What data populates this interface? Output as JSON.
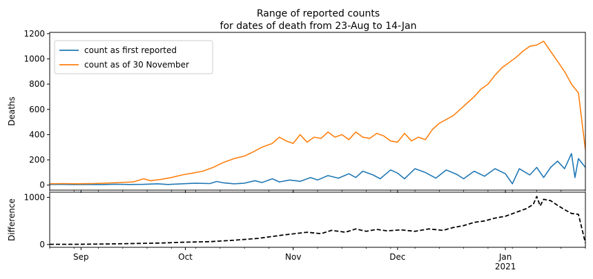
{
  "chart_data": [
    {
      "type": "line",
      "title": "Range of reported counts\nfor dates of death from 23-Aug to 14-Jan",
      "xlabel": "",
      "ylabel": "Deaths",
      "x_range": [
        "2020-08-23",
        "2021-01-24"
      ],
      "ylim": [
        -40,
        1210
      ],
      "yticks": [
        0,
        200,
        400,
        600,
        800,
        1000,
        1200
      ],
      "legend": "top-left",
      "grid": false,
      "series": [
        {
          "name": "count as first reported",
          "color": "#1f77b4",
          "points": [
            [
              "2020-08-23",
              5
            ],
            [
              "2020-08-26",
              6
            ],
            [
              "2020-08-30",
              4
            ],
            [
              "2020-09-03",
              5
            ],
            [
              "2020-09-07",
              4
            ],
            [
              "2020-09-11",
              7
            ],
            [
              "2020-09-15",
              5
            ],
            [
              "2020-09-19",
              6
            ],
            [
              "2020-09-23",
              10
            ],
            [
              "2020-09-26",
              5
            ],
            [
              "2020-09-30",
              10
            ],
            [
              "2020-10-04",
              15
            ],
            [
              "2020-10-08",
              12
            ],
            [
              "2020-10-10",
              28
            ],
            [
              "2020-10-12",
              18
            ],
            [
              "2020-10-15",
              10
            ],
            [
              "2020-10-18",
              15
            ],
            [
              "2020-10-21",
              35
            ],
            [
              "2020-10-23",
              20
            ],
            [
              "2020-10-26",
              50
            ],
            [
              "2020-10-28",
              25
            ],
            [
              "2020-10-31",
              40
            ],
            [
              "2020-11-03",
              30
            ],
            [
              "2020-11-06",
              60
            ],
            [
              "2020-11-08",
              40
            ],
            [
              "2020-11-11",
              75
            ],
            [
              "2020-11-14",
              55
            ],
            [
              "2020-11-17",
              90
            ],
            [
              "2020-11-19",
              60
            ],
            [
              "2020-11-21",
              110
            ],
            [
              "2020-11-24",
              80
            ],
            [
              "2020-11-26",
              50
            ],
            [
              "2020-11-29",
              120
            ],
            [
              "2020-12-01",
              95
            ],
            [
              "2020-12-03",
              50
            ],
            [
              "2020-12-06",
              130
            ],
            [
              "2020-12-09",
              100
            ],
            [
              "2020-12-12",
              55
            ],
            [
              "2020-12-15",
              120
            ],
            [
              "2020-12-18",
              85
            ],
            [
              "2020-12-20",
              50
            ],
            [
              "2020-12-23",
              110
            ],
            [
              "2020-12-26",
              70
            ],
            [
              "2020-12-29",
              130
            ],
            [
              "2021-01-01",
              90
            ],
            [
              "2021-01-03",
              10
            ],
            [
              "2021-01-05",
              130
            ],
            [
              "2021-01-08",
              80
            ],
            [
              "2021-01-10",
              140
            ],
            [
              "2021-01-12",
              60
            ],
            [
              "2021-01-14",
              140
            ],
            [
              "2021-01-16",
              190
            ],
            [
              "2021-01-18",
              130
            ],
            [
              "2021-01-20",
              250
            ],
            [
              "2021-01-21",
              60
            ],
            [
              "2021-01-22",
              210
            ],
            [
              "2021-01-24",
              140
            ]
          ]
        },
        {
          "name": "count as of 30 November",
          "color": "#ff7f0e",
          "points": [
            [
              "2020-08-23",
              10
            ],
            [
              "2020-08-27",
              12
            ],
            [
              "2020-08-31",
              10
            ],
            [
              "2020-09-04",
              12
            ],
            [
              "2020-09-08",
              15
            ],
            [
              "2020-09-12",
              20
            ],
            [
              "2020-09-16",
              25
            ],
            [
              "2020-09-19",
              50
            ],
            [
              "2020-09-21",
              35
            ],
            [
              "2020-09-24",
              45
            ],
            [
              "2020-09-27",
              60
            ],
            [
              "2020-09-30",
              80
            ],
            [
              "2020-10-03",
              95
            ],
            [
              "2020-10-06",
              110
            ],
            [
              "2020-10-09",
              140
            ],
            [
              "2020-10-12",
              180
            ],
            [
              "2020-10-15",
              210
            ],
            [
              "2020-10-18",
              230
            ],
            [
              "2020-10-21",
              270
            ],
            [
              "2020-10-23",
              300
            ],
            [
              "2020-10-26",
              330
            ],
            [
              "2020-10-28",
              380
            ],
            [
              "2020-10-30",
              350
            ],
            [
              "2020-11-01",
              330
            ],
            [
              "2020-11-03",
              400
            ],
            [
              "2020-11-05",
              340
            ],
            [
              "2020-11-07",
              380
            ],
            [
              "2020-11-09",
              370
            ],
            [
              "2020-11-11",
              420
            ],
            [
              "2020-11-13",
              380
            ],
            [
              "2020-11-15",
              400
            ],
            [
              "2020-11-17",
              360
            ],
            [
              "2020-11-19",
              420
            ],
            [
              "2020-11-21",
              380
            ],
            [
              "2020-11-23",
              370
            ],
            [
              "2020-11-25",
              410
            ],
            [
              "2020-11-27",
              390
            ],
            [
              "2020-11-29",
              350
            ],
            [
              "2020-12-01",
              340
            ],
            [
              "2020-12-03",
              410
            ],
            [
              "2020-12-05",
              350
            ],
            [
              "2020-12-07",
              380
            ],
            [
              "2020-12-09",
              360
            ],
            [
              "2020-12-11",
              440
            ],
            [
              "2020-12-13",
              490
            ],
            [
              "2020-12-15",
              520
            ],
            [
              "2020-12-17",
              550
            ],
            [
              "2020-12-19",
              600
            ],
            [
              "2020-12-21",
              650
            ],
            [
              "2020-12-23",
              700
            ],
            [
              "2020-12-25",
              760
            ],
            [
              "2020-12-27",
              800
            ],
            [
              "2020-12-29",
              870
            ],
            [
              "2020-12-31",
              930
            ],
            [
              "2021-01-02",
              970
            ],
            [
              "2021-01-04",
              1010
            ],
            [
              "2021-01-06",
              1060
            ],
            [
              "2021-01-08",
              1100
            ],
            [
              "2021-01-10",
              1110
            ],
            [
              "2021-01-12",
              1140
            ],
            [
              "2021-01-14",
              1060
            ],
            [
              "2021-01-16",
              980
            ],
            [
              "2021-01-18",
              900
            ],
            [
              "2021-01-20",
              800
            ],
            [
              "2021-01-22",
              730
            ],
            [
              "2021-01-24",
              280
            ]
          ]
        }
      ]
    },
    {
      "type": "line",
      "title": "",
      "xlabel": "",
      "ylabel": "Difference",
      "x_range": [
        "2020-08-23",
        "2021-01-24"
      ],
      "ylim": [
        -60,
        1110
      ],
      "yticks": [
        0,
        1000
      ],
      "grid": false,
      "xticks": [
        {
          "date": "2020-09-01",
          "label": "Sep"
        },
        {
          "date": "2020-10-01",
          "label": "Oct"
        },
        {
          "date": "2020-11-01",
          "label": "Nov"
        },
        {
          "date": "2020-12-01",
          "label": "Dec"
        },
        {
          "date": "2021-01-01",
          "label": "Jan\n2021"
        }
      ],
      "series": [
        {
          "name": "",
          "color": "#000000",
          "style": "dashed",
          "points": [
            [
              "2020-08-23",
              5
            ],
            [
              "2020-08-31",
              5
            ],
            [
              "2020-09-08",
              10
            ],
            [
              "2020-09-16",
              20
            ],
            [
              "2020-09-24",
              30
            ],
            [
              "2020-10-01",
              50
            ],
            [
              "2020-10-08",
              60
            ],
            [
              "2020-10-15",
              90
            ],
            [
              "2020-10-22",
              130
            ],
            [
              "2020-10-29",
              200
            ],
            [
              "2020-11-05",
              260
            ],
            [
              "2020-11-09",
              230
            ],
            [
              "2020-11-12",
              300
            ],
            [
              "2020-11-16",
              260
            ],
            [
              "2020-11-19",
              330
            ],
            [
              "2020-11-22",
              280
            ],
            [
              "2020-11-25",
              320
            ],
            [
              "2020-11-28",
              290
            ],
            [
              "2020-12-02",
              310
            ],
            [
              "2020-12-06",
              280
            ],
            [
              "2020-12-10",
              330
            ],
            [
              "2020-12-14",
              300
            ],
            [
              "2020-12-17",
              360
            ],
            [
              "2020-12-20",
              400
            ],
            [
              "2020-12-23",
              470
            ],
            [
              "2020-12-26",
              500
            ],
            [
              "2020-12-29",
              560
            ],
            [
              "2021-01-01",
              600
            ],
            [
              "2021-01-04",
              680
            ],
            [
              "2021-01-07",
              760
            ],
            [
              "2021-01-09",
              850
            ],
            [
              "2021-01-10",
              1020
            ],
            [
              "2021-01-11",
              820
            ],
            [
              "2021-01-12",
              960
            ],
            [
              "2021-01-14",
              930
            ],
            [
              "2021-01-16",
              830
            ],
            [
              "2021-01-18",
              740
            ],
            [
              "2021-01-20",
              660
            ],
            [
              "2021-01-22",
              640
            ],
            [
              "2021-01-24",
              30
            ]
          ]
        }
      ]
    }
  ]
}
